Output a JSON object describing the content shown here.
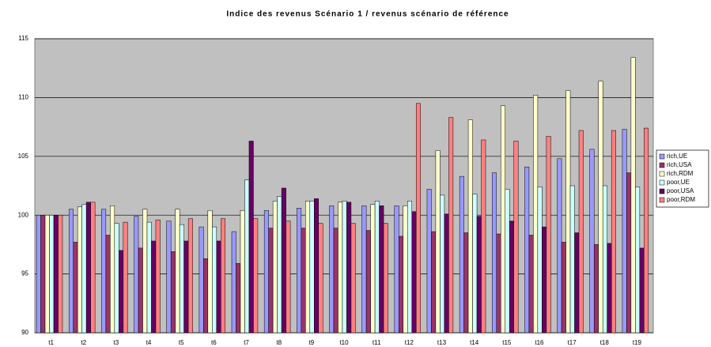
{
  "chart_data": {
    "type": "bar",
    "title": "Indice des revenus Scénario 1 / revenus scénario de référence",
    "categories": [
      "t1",
      "t2",
      "t3",
      "t4",
      "t5",
      "t6",
      "t7",
      "t8",
      "t9",
      "t10",
      "t11",
      "t12",
      "t13",
      "t14",
      "t15",
      "t16",
      "t17",
      "t18",
      "t19"
    ],
    "series": [
      {
        "name": "rich,UE",
        "color": "#9999ff",
        "values": [
          100,
          100.5,
          100.5,
          99.9,
          99.5,
          99.0,
          98.6,
          100.4,
          100.6,
          100.8,
          100.8,
          100.8,
          102.2,
          103.3,
          103.6,
          104.1,
          104.8,
          105.6,
          107.3
        ]
      },
      {
        "name": "rich,USA",
        "color": "#993366",
        "values": [
          100,
          97.7,
          98.3,
          97.2,
          96.9,
          96.3,
          95.9,
          98.9,
          98.9,
          98.9,
          98.7,
          98.2,
          98.6,
          98.5,
          98.4,
          98.3,
          97.7,
          97.5,
          103.6
        ]
      },
      {
        "name": "rich,RDM",
        "color": "#ffffcc",
        "values": [
          100,
          100.7,
          100.8,
          100.5,
          100.5,
          100.4,
          100.4,
          101.2,
          101.2,
          101.1,
          100.9,
          100.8,
          105.5,
          108.1,
          109.3,
          110.2,
          110.6,
          111.4,
          113.4
        ]
      },
      {
        "name": "poor,UE",
        "color": "#ccffff",
        "values": [
          100,
          100.9,
          99.3,
          99.4,
          99.2,
          99.0,
          103.0,
          101.6,
          101.2,
          101.2,
          101.2,
          101.2,
          101.7,
          101.8,
          102.2,
          102.4,
          102.5,
          102.5,
          102.4
        ]
      },
      {
        "name": "poor,USA",
        "color": "#660066",
        "values": [
          100,
          101.1,
          97.0,
          97.8,
          97.8,
          97.8,
          106.3,
          102.3,
          101.4,
          101.1,
          100.8,
          100.3,
          100.1,
          99.9,
          99.5,
          99.0,
          98.5,
          97.6,
          97.2
        ]
      },
      {
        "name": "poor,RDM",
        "color": "#ff8080",
        "values": [
          100,
          101.1,
          99.4,
          99.6,
          99.7,
          99.7,
          99.7,
          99.5,
          99.3,
          99.3,
          99.3,
          109.5,
          108.3,
          106.4,
          106.3,
          106.7,
          107.2,
          107.2,
          107.4
        ]
      }
    ],
    "ylim": [
      90,
      115
    ],
    "yticks": [
      90,
      95,
      100,
      105,
      110,
      115
    ],
    "grid": true,
    "legend": "right",
    "background": "#c0c0c0"
  }
}
